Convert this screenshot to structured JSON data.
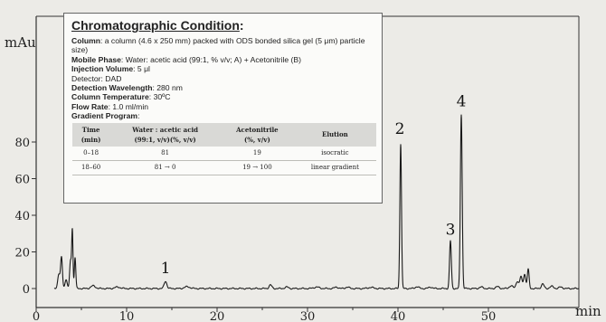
{
  "condition_box": {
    "title": "Chromatographic Condition",
    "title_suffix": ":",
    "lines": [
      {
        "label": "Column",
        "text": ": a column (4.6 x 250 mm) packed with ODS bonded silica gel (5 μm) particle size)"
      },
      {
        "label": "Mobile Phase",
        "text": ": Water: acetic acid (99:1, % v/v; A) + Acetonitrile (B)"
      },
      {
        "label": "Injection Volume",
        "text": ": 5 μl"
      },
      {
        "label": "",
        "text": "Detector: DAD"
      },
      {
        "label": "Detection Wavelength",
        "text": ": 280 nm"
      },
      {
        "label": "Column Temperature",
        "text": ": 30ºC"
      },
      {
        "label": "Flow Rate",
        "text": ": 1.0 ml/min"
      },
      {
        "label": "Gradient Program",
        "text": ":"
      }
    ],
    "table": {
      "headers": [
        [
          "Time",
          "(min)"
        ],
        [
          "Water : acetic acid",
          "(99:1, v/v)(%, v/v)"
        ],
        [
          "Acetonitrile",
          "(%, v/v)"
        ],
        [
          "Elution"
        ]
      ],
      "rows": [
        [
          "0–18",
          "81",
          "19",
          "isocratic"
        ],
        [
          "18–60",
          "81 → 0",
          "19 → 100",
          "linear gradient"
        ]
      ]
    }
  },
  "chart_data": {
    "type": "line",
    "title": "",
    "xlabel": "min",
    "ylabel": "mAu",
    "xlim": [
      0,
      60
    ],
    "ylim": [
      -4,
      100
    ],
    "xticks": [
      0,
      10,
      20,
      30,
      40,
      50
    ],
    "yticks": [
      0,
      20,
      40,
      60,
      80
    ],
    "baseline": 0,
    "colors": {
      "trace": "#1a1a1a",
      "axis": "#333333"
    },
    "peaks": [
      {
        "rt": 2.5,
        "height": 8,
        "width": 0.12
      },
      {
        "rt": 2.8,
        "height": 17,
        "width": 0.1
      },
      {
        "rt": 3.3,
        "height": 5,
        "width": 0.12
      },
      {
        "rt": 3.8,
        "height": 15,
        "width": 0.1
      },
      {
        "rt": 4.0,
        "height": 31,
        "width": 0.07
      },
      {
        "rt": 4.3,
        "height": 17,
        "width": 0.08
      },
      {
        "rt": 6.3,
        "height": 1.5,
        "width": 0.25
      },
      {
        "rt": 9.0,
        "height": 0.8,
        "width": 0.3
      },
      {
        "rt": 14.3,
        "height": 4,
        "width": 0.15
      },
      {
        "rt": 16.7,
        "height": 1,
        "width": 0.3
      },
      {
        "rt": 25.9,
        "height": 2,
        "width": 0.15
      },
      {
        "rt": 27.7,
        "height": 0.8,
        "width": 0.2
      },
      {
        "rt": 31.0,
        "height": 0.8,
        "width": 0.3
      },
      {
        "rt": 33.2,
        "height": 0.8,
        "width": 0.2
      },
      {
        "rt": 34.4,
        "height": 0.8,
        "width": 0.2
      },
      {
        "rt": 37.0,
        "height": 0.6,
        "width": 0.3
      },
      {
        "rt": 40.3,
        "height": 79,
        "width": 0.09
      },
      {
        "rt": 42.1,
        "height": 1,
        "width": 0.2
      },
      {
        "rt": 43.6,
        "height": 0.8,
        "width": 0.2
      },
      {
        "rt": 45.8,
        "height": 26,
        "width": 0.1
      },
      {
        "rt": 47.0,
        "height": 95,
        "width": 0.1
      },
      {
        "rt": 49.2,
        "height": 0.8,
        "width": 0.2
      },
      {
        "rt": 51.0,
        "height": 1,
        "width": 0.2
      },
      {
        "rt": 52.5,
        "height": 1.5,
        "width": 0.2
      },
      {
        "rt": 53.2,
        "height": 4,
        "width": 0.15
      },
      {
        "rt": 53.6,
        "height": 6.5,
        "width": 0.12
      },
      {
        "rt": 54.0,
        "height": 8,
        "width": 0.12
      },
      {
        "rt": 54.4,
        "height": 10.5,
        "width": 0.1
      },
      {
        "rt": 56.0,
        "height": 2.5,
        "width": 0.15
      },
      {
        "rt": 57.0,
        "height": 1.2,
        "width": 0.2
      },
      {
        "rt": 58.0,
        "height": 0.8,
        "width": 0.2
      }
    ],
    "peak_labels": [
      {
        "text": "1",
        "x": 14.3,
        "y": 8.5
      },
      {
        "text": "2",
        "x": 40.2,
        "y": 84.5
      },
      {
        "text": "3",
        "x": 45.8,
        "y": 29.5
      },
      {
        "text": "4",
        "x": 47.0,
        "y": 99.5
      }
    ]
  }
}
